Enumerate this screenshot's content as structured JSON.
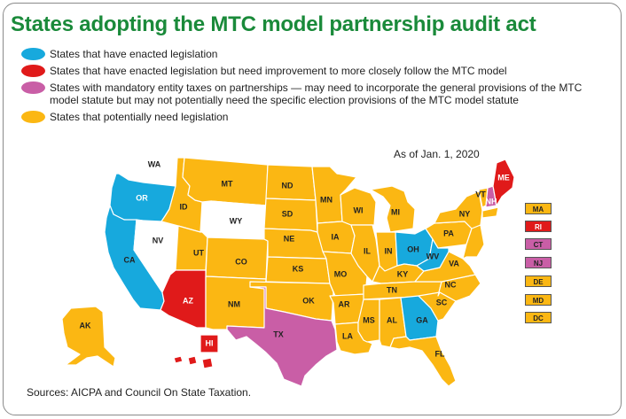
{
  "title": "States adopting the MTC model partnership audit act",
  "legend": [
    {
      "label": "States that have enacted legislation",
      "color": "#17a9dd"
    },
    {
      "label": "States that have enacted legislation but need improvement to more closely follow the MTC model",
      "color": "#e01a1a"
    },
    {
      "label": "States with mandatory entity taxes on partnerships — may need to incorporate the general provisions of the MTC model statute but may not potentially need the specific election provisions of the MTC model statute",
      "color": "#c95ea6"
    },
    {
      "label": "States that potentially need legislation",
      "color": "#fbb713"
    }
  ],
  "as_of": "As of Jan. 1, 2020",
  "source": "Sources: AICPA and Council On State Taxation.",
  "colors": {
    "enacted": "#17a9dd",
    "improve": "#e01a1a",
    "entity": "#c95ea6",
    "need": "#fbb713",
    "none": "#ffffff"
  },
  "states": [
    {
      "abbr": "WA",
      "cat": "none"
    },
    {
      "abbr": "OR",
      "cat": "enacted"
    },
    {
      "abbr": "CA",
      "cat": "enacted"
    },
    {
      "abbr": "NV",
      "cat": "none"
    },
    {
      "abbr": "ID",
      "cat": "need"
    },
    {
      "abbr": "MT",
      "cat": "need"
    },
    {
      "abbr": "WY",
      "cat": "none"
    },
    {
      "abbr": "UT",
      "cat": "need"
    },
    {
      "abbr": "CO",
      "cat": "need"
    },
    {
      "abbr": "AZ",
      "cat": "improve"
    },
    {
      "abbr": "NM",
      "cat": "need"
    },
    {
      "abbr": "ND",
      "cat": "need"
    },
    {
      "abbr": "SD",
      "cat": "need"
    },
    {
      "abbr": "NE",
      "cat": "need"
    },
    {
      "abbr": "KS",
      "cat": "need"
    },
    {
      "abbr": "OK",
      "cat": "need"
    },
    {
      "abbr": "TX",
      "cat": "entity"
    },
    {
      "abbr": "MN",
      "cat": "need"
    },
    {
      "abbr": "IA",
      "cat": "need"
    },
    {
      "abbr": "MO",
      "cat": "need"
    },
    {
      "abbr": "AR",
      "cat": "need"
    },
    {
      "abbr": "LA",
      "cat": "need"
    },
    {
      "abbr": "WI",
      "cat": "need"
    },
    {
      "abbr": "IL",
      "cat": "need"
    },
    {
      "abbr": "MI",
      "cat": "need"
    },
    {
      "abbr": "IN",
      "cat": "need"
    },
    {
      "abbr": "OH",
      "cat": "enacted"
    },
    {
      "abbr": "KY",
      "cat": "need"
    },
    {
      "abbr": "TN",
      "cat": "need"
    },
    {
      "abbr": "MS",
      "cat": "need"
    },
    {
      "abbr": "AL",
      "cat": "need"
    },
    {
      "abbr": "GA",
      "cat": "enacted"
    },
    {
      "abbr": "FL",
      "cat": "need"
    },
    {
      "abbr": "SC",
      "cat": "need"
    },
    {
      "abbr": "NC",
      "cat": "need"
    },
    {
      "abbr": "VA",
      "cat": "need"
    },
    {
      "abbr": "WV",
      "cat": "enacted"
    },
    {
      "abbr": "PA",
      "cat": "need"
    },
    {
      "abbr": "NY",
      "cat": "need"
    },
    {
      "abbr": "VT",
      "cat": "need"
    },
    {
      "abbr": "NH",
      "cat": "entity"
    },
    {
      "abbr": "ME",
      "cat": "improve"
    },
    {
      "abbr": "AK",
      "cat": "need"
    },
    {
      "abbr": "HI",
      "cat": "improve"
    }
  ],
  "small_states": [
    {
      "abbr": "MA",
      "cat": "need"
    },
    {
      "abbr": "RI",
      "cat": "improve"
    },
    {
      "abbr": "CT",
      "cat": "entity"
    },
    {
      "abbr": "NJ",
      "cat": "entity"
    },
    {
      "abbr": "DE",
      "cat": "need"
    },
    {
      "abbr": "MD",
      "cat": "need"
    },
    {
      "abbr": "DC",
      "cat": "need"
    }
  ]
}
